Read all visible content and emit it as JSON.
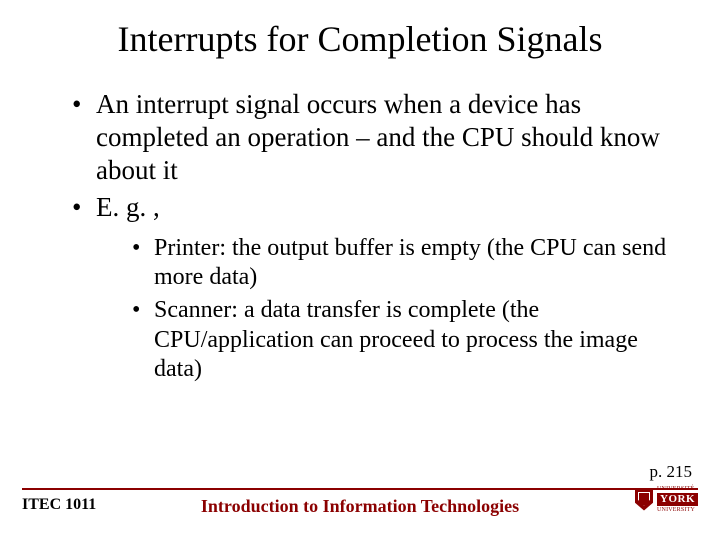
{
  "title": "Interrupts for Completion Signals",
  "bullets": {
    "b1": "An interrupt signal occurs when a device has completed an operation – and the CPU should know about it",
    "b2": "E. g. ,",
    "sub1": "Printer: the output buffer is empty (the CPU can send more data)",
    "sub2": "Scanner: a data transfer is complete (the CPU/application can proceed to process the image data)"
  },
  "page_ref": "p. 215",
  "footer": {
    "course": "ITEC 1011",
    "subtitle": "Introduction to Information Technologies",
    "logo": {
      "top": "UNIVERSITÉ",
      "name": "YORK",
      "bottom": "UNIVERSITY"
    }
  },
  "colors": {
    "accent": "#8b0000",
    "text": "#000000",
    "bg": "#ffffff"
  },
  "font": {
    "title_size": 36,
    "lvl1_size": 27,
    "lvl2_size": 24,
    "footer_size": 18
  }
}
